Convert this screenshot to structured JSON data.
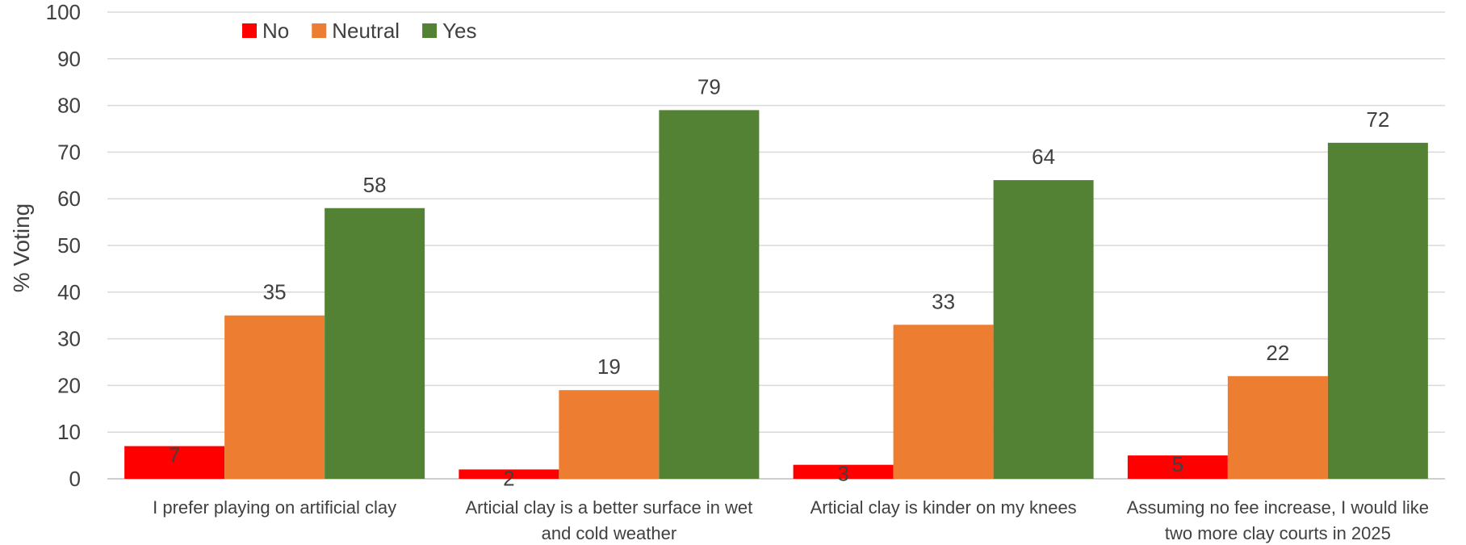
{
  "chart_data": {
    "type": "bar",
    "ylabel": "% Voting",
    "xlabel": "",
    "ylim": [
      0,
      100
    ],
    "yticks": [
      0,
      10,
      20,
      30,
      40,
      50,
      60,
      70,
      80,
      90,
      100
    ],
    "grid": true,
    "legend_position": "top-left",
    "categories": [
      [
        "I prefer playing on artificial clay"
      ],
      [
        "Articial clay is a better surface in wet",
        "and cold weather"
      ],
      [
        "Articial clay is kinder on my knees"
      ],
      [
        "Assuming no fee increase, I would like",
        "two more clay courts in 2025"
      ]
    ],
    "series": [
      {
        "name": "No",
        "color": "#ff0000",
        "values": [
          7,
          2,
          3,
          5
        ]
      },
      {
        "name": "Neutral",
        "color": "#ed7d31",
        "values": [
          35,
          19,
          33,
          22
        ]
      },
      {
        "name": "Yes",
        "color": "#548235",
        "values": [
          58,
          79,
          64,
          72
        ]
      }
    ]
  }
}
